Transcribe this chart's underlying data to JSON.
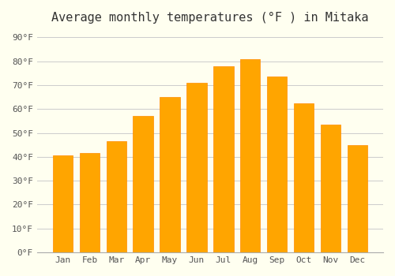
{
  "title": "Average monthly temperatures (°F ) in Mitaka",
  "months": [
    "Jan",
    "Feb",
    "Mar",
    "Apr",
    "May",
    "Jun",
    "Jul",
    "Aug",
    "Sep",
    "Oct",
    "Nov",
    "Dec"
  ],
  "temperatures": [
    40.5,
    41.5,
    46.5,
    57,
    65,
    71,
    78,
    81,
    73.5,
    62.5,
    53.5,
    45
  ],
  "bar_color": "#FFA500",
  "bar_edge_color": "#FF8C00",
  "background_color": "#FFFFF0",
  "grid_color": "#CCCCCC",
  "yticks": [
    0,
    10,
    20,
    30,
    40,
    50,
    60,
    70,
    80,
    90
  ],
  "ylim": [
    0,
    93
  ],
  "title_fontsize": 11,
  "tick_fontsize": 8,
  "font_family": "monospace"
}
